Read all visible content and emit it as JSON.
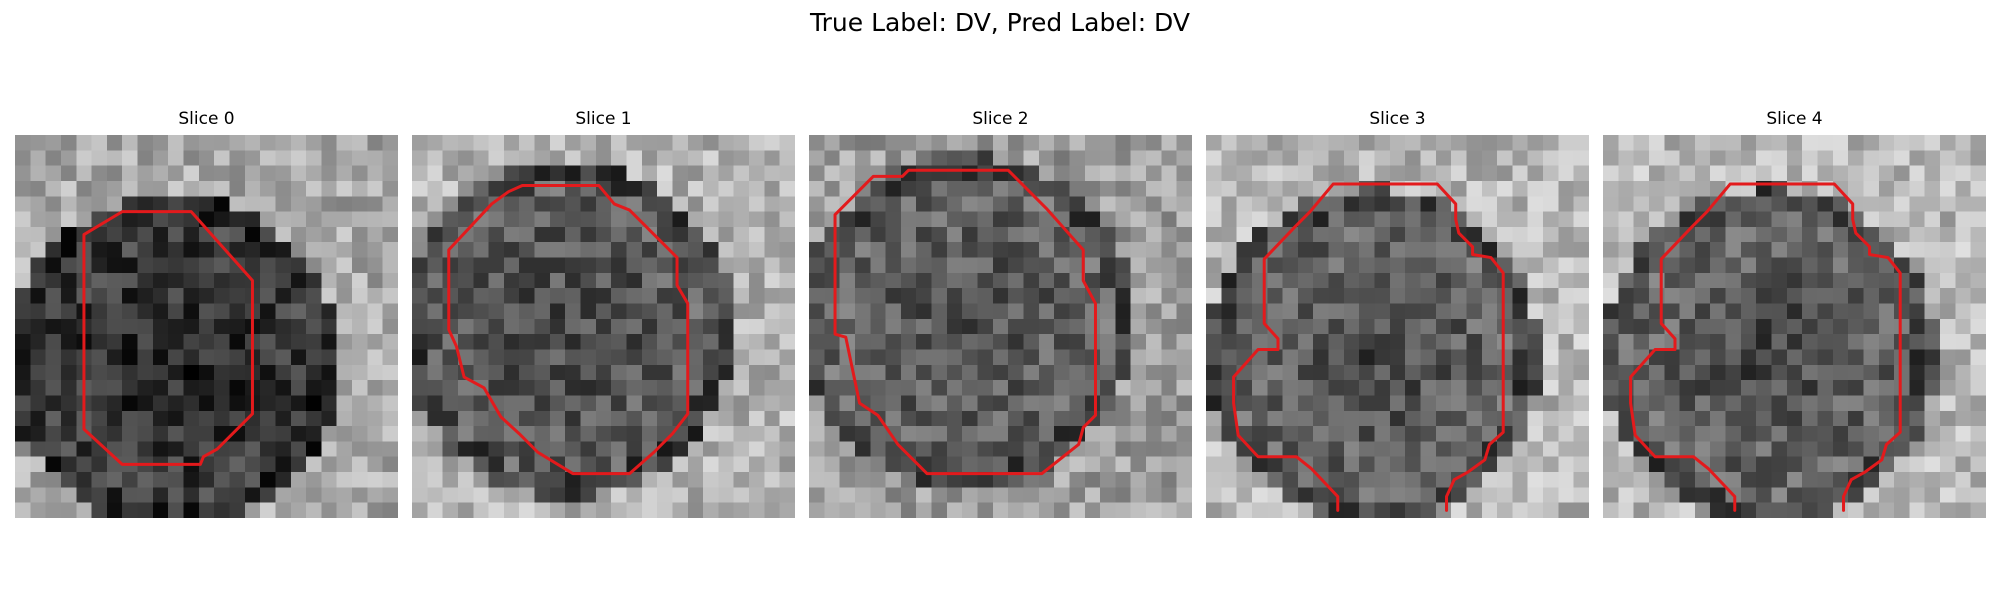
{
  "suptitle": "True Label: DV, Pred Label: DV",
  "contour_color": "#e31a1c",
  "slices": [
    {
      "title": "Slice 0",
      "seed": 11,
      "background": 0.66,
      "center_dark": 0.2,
      "core_dark": 0.13,
      "contour": [
        [
          7,
          5
        ],
        [
          11.5,
          5
        ],
        [
          15.5,
          9.5
        ],
        [
          15.5,
          18.2
        ],
        [
          13.2,
          20.5
        ],
        [
          12.3,
          21
        ],
        [
          12.1,
          21.5
        ],
        [
          7,
          21.5
        ],
        [
          4.5,
          19.2
        ],
        [
          4.5,
          6.5
        ]
      ],
      "contour_open": false
    },
    {
      "title": "Slice 1",
      "seed": 23,
      "background": 0.7,
      "center_dark": 0.33,
      "core_dark": 0.3,
      "contour": [
        [
          7.2,
          3.3
        ],
        [
          12.2,
          3.3
        ],
        [
          13.2,
          4.5
        ],
        [
          14.2,
          4.9
        ],
        [
          17.3,
          8
        ],
        [
          17.3,
          9.8
        ],
        [
          18,
          11
        ],
        [
          18,
          18.2
        ],
        [
          17,
          19.5
        ],
        [
          15.8,
          20.7
        ],
        [
          14.2,
          22.1
        ],
        [
          10.5,
          22.1
        ],
        [
          8.2,
          20.7
        ],
        [
          7,
          19.5
        ],
        [
          5.8,
          18.4
        ],
        [
          4.7,
          16.5
        ],
        [
          3.4,
          15.8
        ],
        [
          2.9,
          13.8
        ],
        [
          2.4,
          12.7
        ],
        [
          2.4,
          7.5
        ],
        [
          5.2,
          4.5
        ],
        [
          6.3,
          3.7
        ]
      ],
      "contour_open": false
    },
    {
      "title": "Slice 2",
      "seed": 37,
      "background": 0.62,
      "center_dark": 0.36,
      "core_dark": 0.3,
      "contour": [
        [
          6.5,
          2.3
        ],
        [
          13,
          2.3
        ],
        [
          15.5,
          4.8
        ],
        [
          17.9,
          7.5
        ],
        [
          17.9,
          9.5
        ],
        [
          18.7,
          11
        ],
        [
          18.7,
          18.3
        ],
        [
          17.9,
          19.1
        ],
        [
          17.6,
          20.2
        ],
        [
          15.2,
          22.1
        ],
        [
          7.7,
          22.1
        ],
        [
          5.8,
          20.2
        ],
        [
          4.5,
          18.3
        ],
        [
          3.3,
          17.5
        ],
        [
          2.4,
          13.2
        ],
        [
          1.7,
          13
        ],
        [
          1.7,
          5.2
        ],
        [
          4.2,
          2.7
        ],
        [
          6.1,
          2.7
        ]
      ],
      "contour_open": false
    },
    {
      "title": "Slice 3",
      "seed": 49,
      "background": 0.72,
      "center_dark": 0.36,
      "core_dark": 0.24,
      "contour": [
        [
          8.6,
          24.5
        ],
        [
          8.6,
          23.6
        ],
        [
          6.9,
          21.8
        ],
        [
          5.9,
          21
        ],
        [
          3.4,
          21
        ],
        [
          2.1,
          19.6
        ],
        [
          1.8,
          17.5
        ],
        [
          1.8,
          15.8
        ],
        [
          3.4,
          14
        ],
        [
          4.7,
          14
        ],
        [
          4.7,
          13.3
        ],
        [
          3.8,
          12.3
        ],
        [
          3.8,
          8.1
        ],
        [
          5.8,
          6
        ],
        [
          6.8,
          5
        ],
        [
          8.3,
          3.2
        ],
        [
          15.1,
          3.2
        ],
        [
          16.3,
          4.5
        ],
        [
          16.3,
          5.5
        ],
        [
          16.5,
          6.4
        ],
        [
          17.4,
          7.3
        ],
        [
          17.4,
          7.8
        ],
        [
          18.6,
          8
        ],
        [
          19.4,
          9
        ],
        [
          19.4,
          19.4
        ],
        [
          18.5,
          20.2
        ],
        [
          18.2,
          21.2
        ],
        [
          17.1,
          22
        ],
        [
          16.2,
          22.5
        ],
        [
          15.7,
          23.6
        ],
        [
          15.7,
          24.5
        ]
      ],
      "contour_open": true
    },
    {
      "title": "Slice 4",
      "seed": 61,
      "background": 0.72,
      "center_dark": 0.36,
      "core_dark": 0.24,
      "contour": [
        [
          8.6,
          24.5
        ],
        [
          8.6,
          23.6
        ],
        [
          6.9,
          21.8
        ],
        [
          5.9,
          21
        ],
        [
          3.4,
          21
        ],
        [
          2.1,
          19.6
        ],
        [
          1.8,
          17.5
        ],
        [
          1.8,
          15.8
        ],
        [
          3.4,
          14
        ],
        [
          4.7,
          14
        ],
        [
          4.7,
          13.3
        ],
        [
          3.8,
          12.3
        ],
        [
          3.8,
          8.1
        ],
        [
          5.8,
          6
        ],
        [
          6.8,
          5
        ],
        [
          8.3,
          3.2
        ],
        [
          15.1,
          3.2
        ],
        [
          16.3,
          4.5
        ],
        [
          16.3,
          5.5
        ],
        [
          16.5,
          6.4
        ],
        [
          17.4,
          7.3
        ],
        [
          17.4,
          7.8
        ],
        [
          18.6,
          8
        ],
        [
          19.4,
          9
        ],
        [
          19.4,
          19.4
        ],
        [
          18.5,
          20.2
        ],
        [
          18.2,
          21.2
        ],
        [
          17.1,
          22
        ],
        [
          16.2,
          22.5
        ],
        [
          15.7,
          23.6
        ],
        [
          15.7,
          24.5
        ]
      ],
      "contour_open": true
    }
  ]
}
